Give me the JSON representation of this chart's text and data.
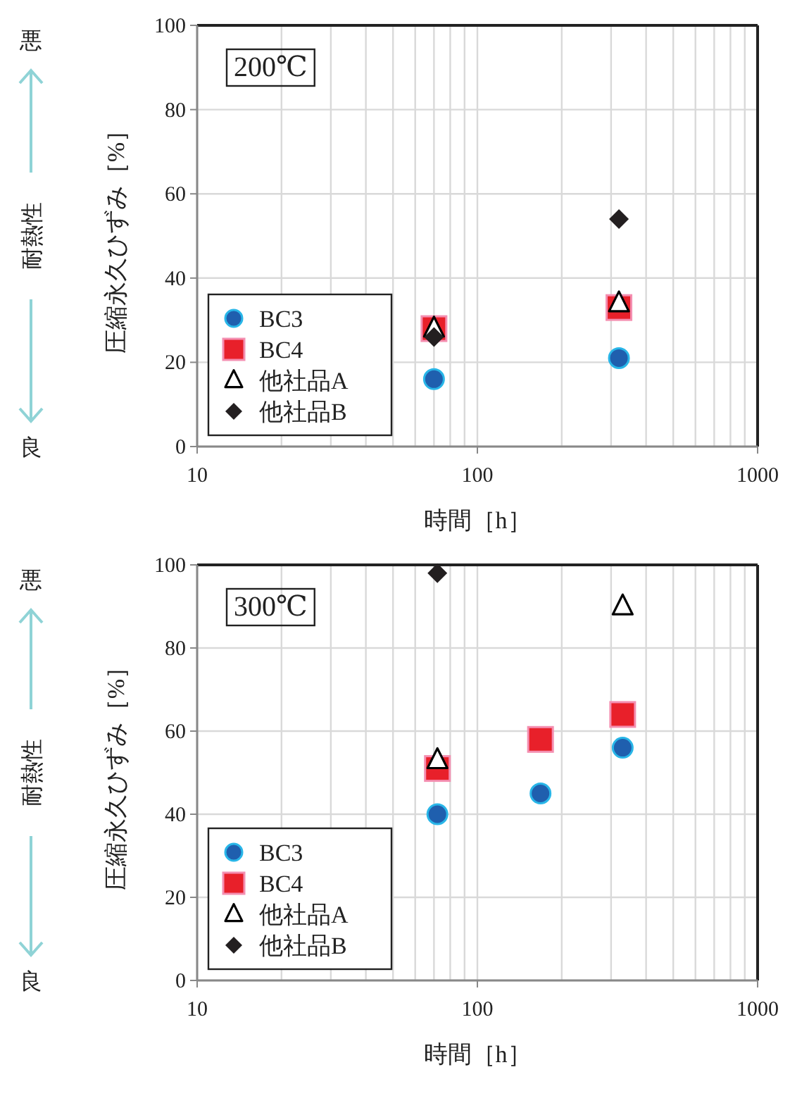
{
  "chart_data": [
    {
      "type": "scatter",
      "title": "200℃",
      "xlabel": "時間［h］",
      "ylabel": "圧縮永久ひずみ［%］",
      "log": "x",
      "xlim": [
        10,
        1000
      ],
      "xticks": [
        10,
        100,
        1000
      ],
      "ylim": [
        0,
        100
      ],
      "yticks": [
        0,
        20,
        40,
        60,
        80,
        100
      ],
      "grid": true,
      "legend": "bottom left",
      "annotations": [
        "悪",
        "耐熱性",
        "良"
      ],
      "series": [
        {
          "name": "BC3",
          "color": "#1f5fae",
          "marker": "circle",
          "x": [
            70,
            320
          ],
          "values": [
            16,
            21
          ]
        },
        {
          "name": "BC4",
          "color": "#e8202a",
          "marker": "square",
          "x": [
            70,
            320
          ],
          "values": [
            28,
            33
          ]
        },
        {
          "name": "他社品A",
          "color": "#000000",
          "marker": "triangle",
          "x": [
            70,
            320
          ],
          "values": [
            28,
            34
          ]
        },
        {
          "name": "他社品B",
          "color": "#231f20",
          "marker": "diamond",
          "x": [
            70,
            320
          ],
          "values": [
            26,
            54
          ]
        }
      ]
    },
    {
      "type": "scatter",
      "title": "300℃",
      "xlabel": "時間［h］",
      "ylabel": "圧縮永久ひずみ［%］",
      "log": "x",
      "xlim": [
        10,
        1000
      ],
      "xticks": [
        10,
        100,
        1000
      ],
      "ylim": [
        0,
        100
      ],
      "yticks": [
        0,
        20,
        40,
        60,
        80,
        100
      ],
      "grid": true,
      "legend": "bottom left",
      "annotations": [
        "悪",
        "耐熱性",
        "良"
      ],
      "series": [
        {
          "name": "BC3",
          "color": "#1f5fae",
          "marker": "circle",
          "x": [
            72,
            168,
            330
          ],
          "values": [
            40,
            45,
            56
          ]
        },
        {
          "name": "BC4",
          "color": "#e8202a",
          "marker": "square",
          "x": [
            72,
            168,
            330
          ],
          "values": [
            51,
            58,
            64
          ]
        },
        {
          "name": "他社品A",
          "color": "#000000",
          "marker": "triangle",
          "x": [
            72,
            330
          ],
          "values": [
            53,
            90
          ]
        },
        {
          "name": "他社品B",
          "color": "#231f20",
          "marker": "diamond",
          "x": [
            72
          ],
          "values": [
            98
          ]
        }
      ]
    }
  ]
}
